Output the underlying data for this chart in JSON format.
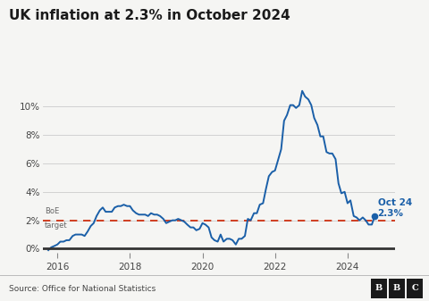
{
  "title": "UK inflation at 2.3% in October 2024",
  "source": "Source: Office for National Statistics",
  "boe_label_line1": "BoE",
  "boe_label_line2": "target",
  "boe_target": 2.0,
  "annotation_label": "Oct 24\n2.3%",
  "line_color": "#1a5fa8",
  "boe_color": "#cc2200",
  "zero_line_color": "#333333",
  "background_color": "#f5f5f3",
  "grid_color": "#cccccc",
  "ylim": [
    -0.5,
    12.2
  ],
  "yticks": [
    0,
    2,
    4,
    6,
    8,
    10
  ],
  "ytick_labels": [
    "0%",
    "2%",
    "4%",
    "6%",
    "8%",
    "10%"
  ],
  "xticks": [
    2016,
    2018,
    2020,
    2022,
    2024
  ],
  "xlim": [
    2015.6,
    2025.3
  ],
  "dates": [
    2015.75,
    2015.83,
    2015.92,
    2016.0,
    2016.08,
    2016.17,
    2016.25,
    2016.33,
    2016.42,
    2016.5,
    2016.58,
    2016.67,
    2016.75,
    2016.83,
    2016.92,
    2017.0,
    2017.08,
    2017.17,
    2017.25,
    2017.33,
    2017.42,
    2017.5,
    2017.58,
    2017.67,
    2017.75,
    2017.83,
    2017.92,
    2018.0,
    2018.08,
    2018.17,
    2018.25,
    2018.33,
    2018.42,
    2018.5,
    2018.58,
    2018.67,
    2018.75,
    2018.83,
    2018.92,
    2019.0,
    2019.08,
    2019.17,
    2019.25,
    2019.33,
    2019.42,
    2019.5,
    2019.58,
    2019.67,
    2019.75,
    2019.83,
    2019.92,
    2020.0,
    2020.08,
    2020.17,
    2020.25,
    2020.33,
    2020.42,
    2020.5,
    2020.58,
    2020.67,
    2020.75,
    2020.83,
    2020.92,
    2021.0,
    2021.08,
    2021.17,
    2021.25,
    2021.33,
    2021.42,
    2021.5,
    2021.58,
    2021.67,
    2021.75,
    2021.83,
    2021.92,
    2022.0,
    2022.08,
    2022.17,
    2022.25,
    2022.33,
    2022.42,
    2022.5,
    2022.58,
    2022.67,
    2022.75,
    2022.83,
    2022.92,
    2023.0,
    2023.08,
    2023.17,
    2023.25,
    2023.33,
    2023.42,
    2023.5,
    2023.58,
    2023.67,
    2023.75,
    2023.83,
    2023.92,
    2024.0,
    2024.08,
    2024.17,
    2024.25,
    2024.33,
    2024.42,
    2024.5,
    2024.58,
    2024.67,
    2024.75
  ],
  "values": [
    -0.1,
    0.1,
    0.2,
    0.3,
    0.5,
    0.5,
    0.6,
    0.6,
    0.9,
    1.0,
    1.0,
    1.0,
    0.9,
    1.2,
    1.6,
    1.8,
    2.3,
    2.7,
    2.9,
    2.6,
    2.6,
    2.6,
    2.9,
    3.0,
    3.0,
    3.1,
    3.0,
    3.0,
    2.7,
    2.5,
    2.4,
    2.4,
    2.4,
    2.3,
    2.5,
    2.4,
    2.4,
    2.3,
    2.1,
    1.8,
    1.9,
    2.0,
    2.0,
    2.1,
    2.0,
    1.9,
    1.7,
    1.5,
    1.5,
    1.3,
    1.4,
    1.8,
    1.7,
    1.5,
    0.8,
    0.6,
    0.5,
    1.0,
    0.5,
    0.7,
    0.7,
    0.6,
    0.3,
    0.7,
    0.7,
    0.9,
    2.1,
    2.0,
    2.5,
    2.5,
    3.1,
    3.2,
    4.2,
    5.1,
    5.4,
    5.5,
    6.2,
    7.0,
    9.0,
    9.4,
    10.1,
    10.1,
    9.9,
    10.1,
    11.1,
    10.7,
    10.5,
    10.1,
    9.2,
    8.7,
    7.9,
    7.9,
    6.8,
    6.7,
    6.7,
    6.3,
    4.6,
    3.9,
    4.0,
    3.2,
    3.4,
    2.3,
    2.2,
    2.0,
    2.2,
    2.0,
    1.7,
    1.7,
    2.3
  ]
}
